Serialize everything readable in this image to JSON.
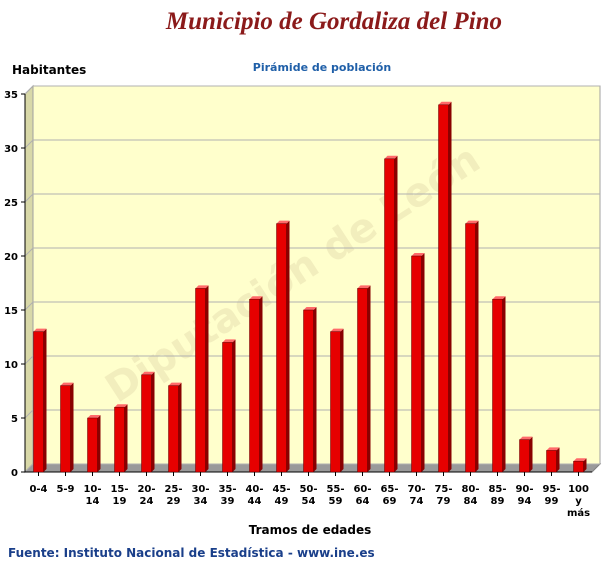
{
  "page": {
    "title": "Municipio de Gordaliza del Pino",
    "source": "Fuente: Instituto Nacional de Estadística - www.ine.es",
    "watermark": "Diputación de León"
  },
  "colors": {
    "bar": "#e60000",
    "bar_side": "#8a0000",
    "bar_top": "#ff6a6a",
    "plot_background": "#ffffcc",
    "title": "#8b1a1a",
    "subtitle": "#1f5fa8"
  },
  "chart_data": {
    "type": "bar",
    "title": "Pirámide de población",
    "xlabel": "Tramos de edades",
    "ylabel": "Habitantes",
    "ylim": [
      0,
      35
    ],
    "yticks": [
      0,
      5,
      10,
      15,
      20,
      25,
      30,
      35
    ],
    "grid": true,
    "legend": "none",
    "categories": [
      "0-4",
      "5-9",
      "10-14",
      "15-19",
      "20-24",
      "25-29",
      "30-34",
      "35-39",
      "40-44",
      "45-49",
      "50-54",
      "55-59",
      "60-64",
      "65-69",
      "70-74",
      "75-79",
      "80-84",
      "85-89",
      "90-94",
      "95-99",
      "100 y más"
    ],
    "category_lines": [
      [
        "0-4"
      ],
      [
        "5-9"
      ],
      [
        "10-",
        "14"
      ],
      [
        "15-",
        "19"
      ],
      [
        "20-",
        "24"
      ],
      [
        "25-",
        "29"
      ],
      [
        "30-",
        "34"
      ],
      [
        "35-",
        "39"
      ],
      [
        "40-",
        "44"
      ],
      [
        "45-",
        "49"
      ],
      [
        "50-",
        "54"
      ],
      [
        "55-",
        "59"
      ],
      [
        "60-",
        "64"
      ],
      [
        "65-",
        "69"
      ],
      [
        "70-",
        "74"
      ],
      [
        "75-",
        "79"
      ],
      [
        "80-",
        "84"
      ],
      [
        "85-",
        "89"
      ],
      [
        "90-",
        "94"
      ],
      [
        "95-",
        "99"
      ],
      [
        "100",
        "y",
        "más"
      ]
    ],
    "values": [
      13,
      8,
      5,
      6,
      9,
      8,
      17,
      12,
      16,
      23,
      15,
      13,
      17,
      29,
      20,
      34,
      23,
      16,
      3,
      2,
      1
    ]
  }
}
